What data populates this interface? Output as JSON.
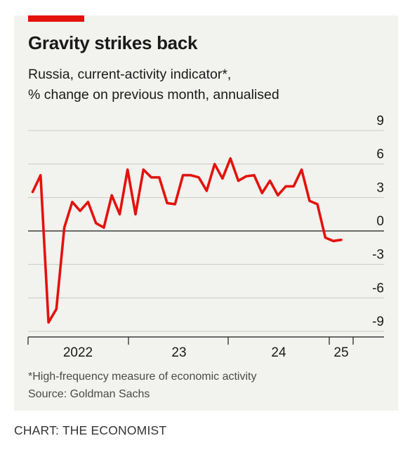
{
  "title": "Gravity strikes back",
  "subtitle_line1": "Russia, current-activity indicator*,",
  "subtitle_line2": "% change on previous month, annualised",
  "footnote": "*High-frequency measure of economic activity",
  "source": "Source: Goldman Sachs",
  "credit": "CHART: THE ECONOMIST",
  "colors": {
    "line": "#e3120b",
    "background": "#f2f2ef",
    "accent_tag": "#e3120b"
  },
  "chart_data": {
    "type": "line",
    "title": "Gravity strikes back",
    "subtitle": "Russia, current-activity indicator*, % change on previous month, annualised",
    "ylim": [
      -9,
      9
    ],
    "yticks": [
      9,
      6,
      3,
      0,
      -3,
      -6,
      -9
    ],
    "ytick_labels": [
      "9",
      "6",
      "3",
      "0",
      "-3",
      "-6",
      "-9"
    ],
    "xticks": [
      {
        "label": "2022",
        "year": 2022.0,
        "year_mid": 2022.5
      },
      {
        "label": "23",
        "year": 2023.0,
        "year_mid": 2023.5
      },
      {
        "label": "24",
        "year": 2024.0,
        "year_mid": 2024.5
      },
      {
        "label": "25",
        "year": 2025.0,
        "year_mid": 2025.17
      }
    ],
    "xlim": [
      2021.92,
      2025.33
    ],
    "grid": true,
    "series": [
      {
        "x": [
          "2021-12",
          "2022-01",
          "2022-02",
          "2022-03",
          "2022-04",
          "2022-05",
          "2022-06",
          "2022-07",
          "2022-08",
          "2022-09",
          "2022-10",
          "2022-11",
          "2022-12",
          "2023-01",
          "2023-02",
          "2023-03",
          "2023-04",
          "2023-05",
          "2023-06",
          "2023-07",
          "2023-08",
          "2023-09",
          "2023-10",
          "2023-11",
          "2023-12",
          "2024-01",
          "2024-02",
          "2024-03",
          "2024-04",
          "2024-05",
          "2024-06",
          "2024-07",
          "2024-08",
          "2024-09",
          "2024-10",
          "2024-11",
          "2024-12",
          "2025-01",
          "2025-02",
          "2025-03"
        ],
        "values": [
          3.5,
          5.0,
          -8.2,
          -7.0,
          0.3,
          2.6,
          1.8,
          2.6,
          0.7,
          0.3,
          3.2,
          1.5,
          5.5,
          1.5,
          5.5,
          4.8,
          4.8,
          2.5,
          2.4,
          5.0,
          5.0,
          4.8,
          3.6,
          6.0,
          4.7,
          6.5,
          4.5,
          4.9,
          5.0,
          3.4,
          4.5,
          3.2,
          4.0,
          4.0,
          5.5,
          2.7,
          2.4,
          -0.6,
          -0.9,
          -0.8
        ]
      }
    ]
  }
}
